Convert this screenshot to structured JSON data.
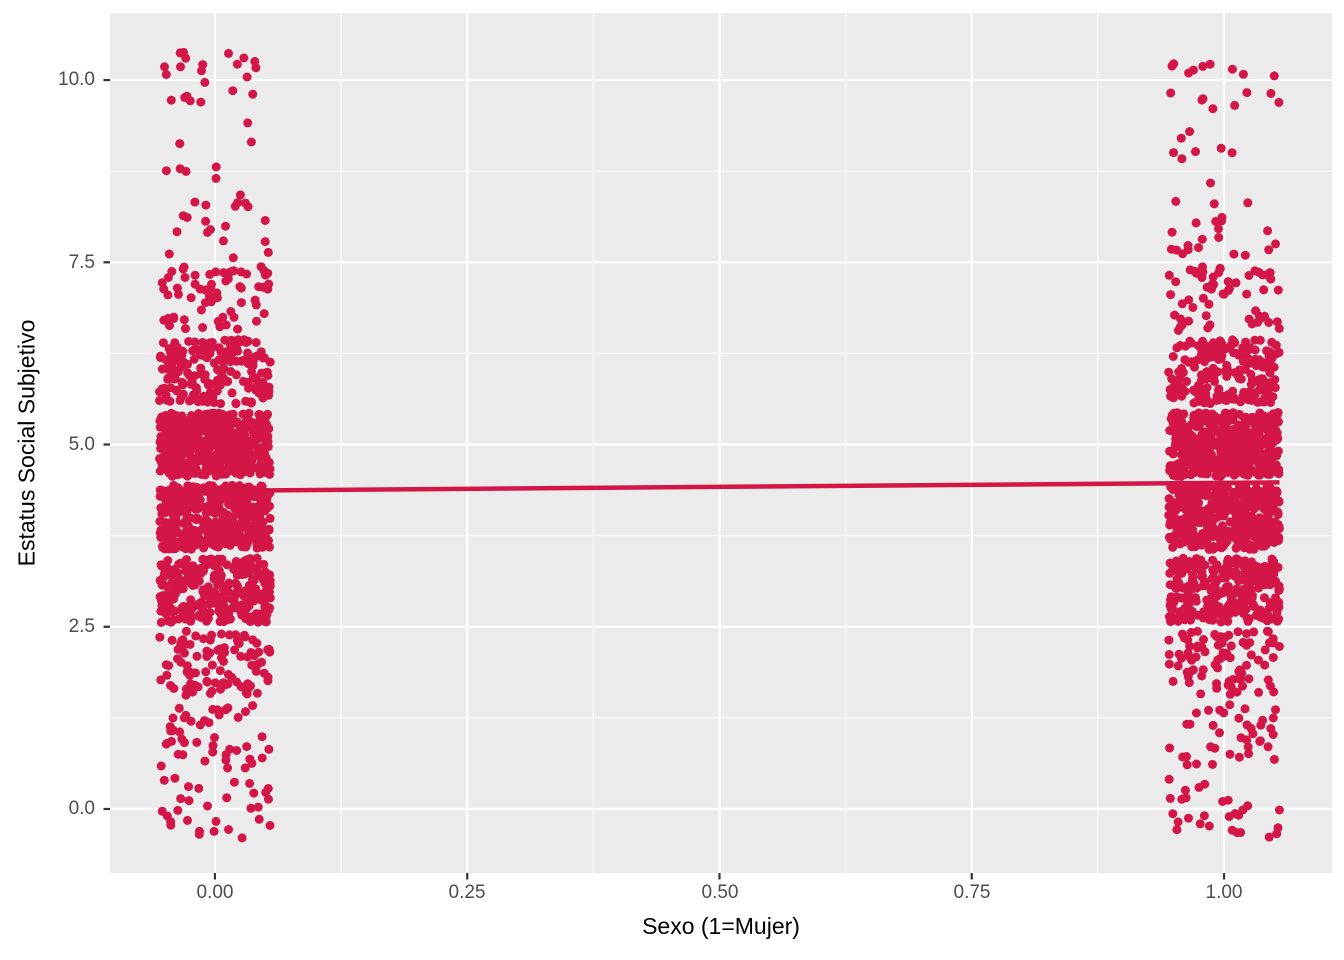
{
  "chart_data": {
    "type": "scatter",
    "subtype": "jitter-with-linear-fit",
    "title": "",
    "xlabel": "Sexo (1=Mujer)",
    "ylabel": "Estatus Social Subjetivo",
    "x_ticks": [
      0,
      0.25,
      0.5,
      0.75,
      1
    ],
    "x_tick_labels": [
      "0.00",
      "0.25",
      "0.50",
      "0.75",
      "1.00"
    ],
    "y_ticks": [
      0,
      2.5,
      5,
      7.5,
      10
    ],
    "y_tick_labels": [
      "0.0",
      "2.5",
      "5.0",
      "7.5",
      "10.0"
    ],
    "x_minor_ticks": [
      0.125,
      0.375,
      0.625,
      0.875
    ],
    "y_minor_ticks": [
      1.25,
      3.75,
      6.25,
      8.75
    ],
    "xlim": [
      -0.104,
      1.107
    ],
    "ylim": [
      -0.878,
      10.92
    ],
    "grid": true,
    "legend": false,
    "panel_bg": "#EBEBEB",
    "gridline_color": "#FFFFFF",
    "tick_mark_color": "#333333",
    "tick_label_color": "#4D4D4D",
    "point_color": "#D31647",
    "point_radius": 4.5,
    "jitter": {
      "width": 0.055,
      "height": 0.44
    },
    "estatus_values": [
      0,
      1,
      2,
      3,
      4,
      5,
      6,
      7,
      8,
      9,
      10
    ],
    "series": [
      {
        "x": 0,
        "counts_per_value": [
          30,
          45,
          95,
          300,
          450,
          480,
          195,
          62,
          20,
          8,
          22
        ]
      },
      {
        "x": 1,
        "counts_per_value": [
          28,
          38,
          85,
          280,
          430,
          470,
          200,
          58,
          22,
          8,
          17
        ]
      }
    ],
    "regression_line": {
      "color": "#D31647",
      "stroke_width": 4.5,
      "x1": -0.055,
      "y1": 4.36,
      "x2": 1.055,
      "y2": 4.48
    }
  }
}
